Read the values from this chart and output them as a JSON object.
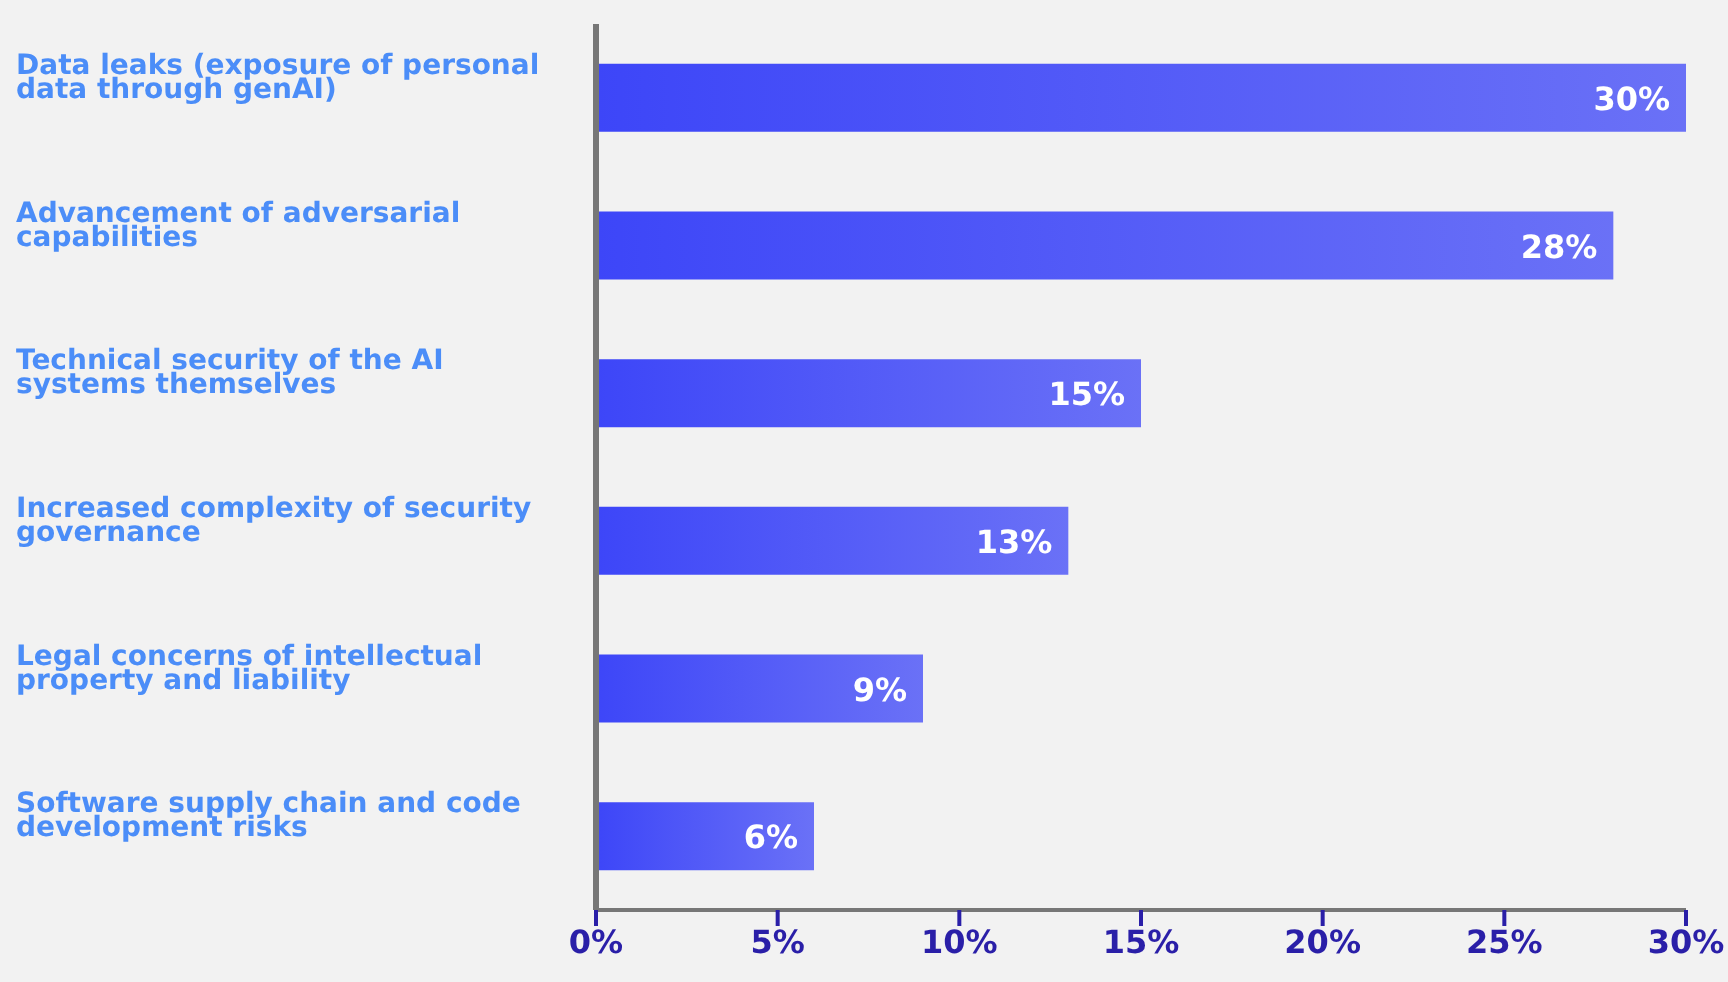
{
  "chart_data": {
    "type": "bar",
    "orientation": "horizontal",
    "categories": [
      "Data leaks (exposure of personal data through genAI)",
      "Advancement of adversarial capabilities",
      "Technical security of the AI systems themselves",
      "Increased complexity of security governance",
      "Legal concerns of intellectual property and liability",
      "Software supply chain and code development risks"
    ],
    "values": [
      30,
      28,
      15,
      13,
      9,
      6
    ],
    "value_labels": [
      "30%",
      "28%",
      "15%",
      "13%",
      "9%",
      "6%"
    ],
    "color": "#3d46f8",
    "xlim": [
      0,
      30
    ],
    "xticks": [
      {
        "value": 0,
        "label": "0%"
      },
      {
        "value": 5,
        "label": "5%"
      },
      {
        "value": 10,
        "label": "10%"
      },
      {
        "value": 15,
        "label": "15%"
      },
      {
        "value": 20,
        "label": "20%"
      },
      {
        "value": 25,
        "label": "25%"
      },
      {
        "value": 30,
        "label": "30%"
      }
    ],
    "grid": false,
    "legend": false
  }
}
